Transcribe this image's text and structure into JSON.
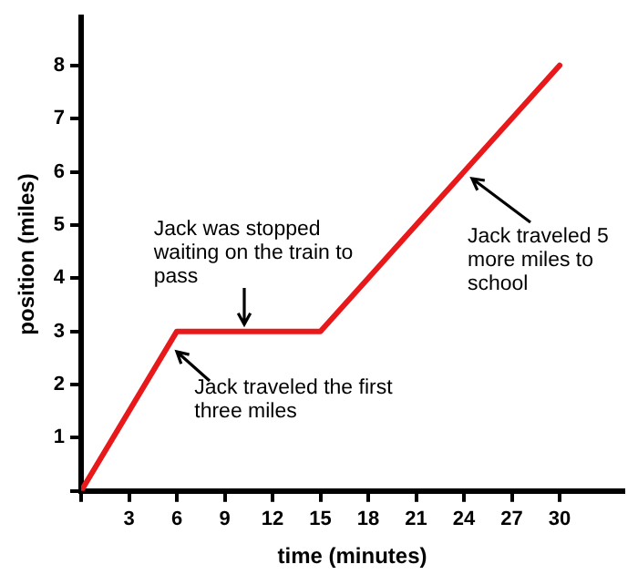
{
  "chart_data": {
    "type": "line",
    "xlabel": "time (minutes)",
    "ylabel": "position (miles)",
    "x": [
      0,
      6,
      15,
      30
    ],
    "series": [
      {
        "color": "#e8191b",
        "values": [
          0,
          3,
          3,
          8
        ]
      }
    ],
    "xlim": [
      0,
      34
    ],
    "ylim": [
      0,
      8.9
    ],
    "xticks": [
      {
        "value": 0,
        "label": null
      },
      3,
      6,
      9,
      12,
      15,
      18,
      21,
      24,
      27,
      30
    ],
    "yticks": [
      {
        "value": 0,
        "label": null
      },
      1,
      2,
      3,
      4,
      5,
      6,
      7,
      8
    ],
    "grid": false,
    "marker": "none",
    "line_style": "solid",
    "annotations": [
      {
        "text": "Jack was stopped waiting on the train to pass",
        "x": 10.5,
        "y": 3
      },
      {
        "text": "Jack traveled the first three miles",
        "x": 5.5,
        "y": 2.75
      },
      {
        "text": "Jack traveled 5 more miles to school",
        "x": 24,
        "y": 6
      }
    ]
  }
}
